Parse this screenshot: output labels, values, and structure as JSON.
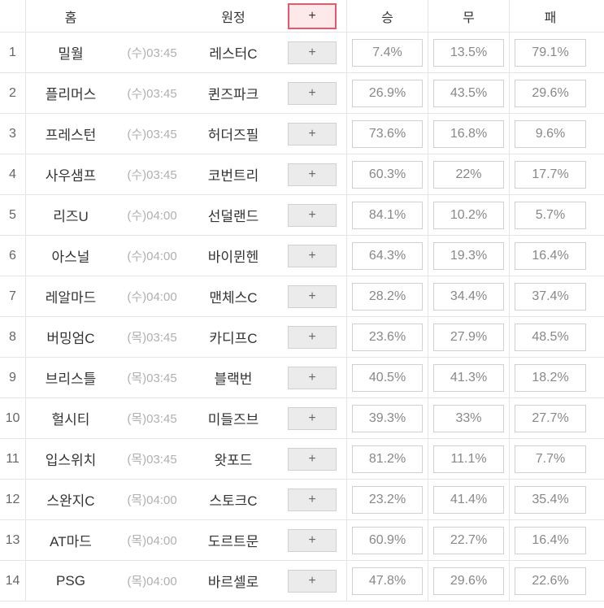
{
  "header": {
    "home": "홈",
    "away": "원정",
    "plus": "+",
    "win": "승",
    "draw": "무",
    "lose": "패"
  },
  "plus_label": "+",
  "colors": {
    "border": "#e5e5e5",
    "text_primary": "#333333",
    "text_secondary": "#666666",
    "text_muted": "#b0b0b0",
    "pct_text": "#888888",
    "plus_bg": "#ebebeb",
    "plus_border": "#d0d0d0",
    "header_plus_bg": "#fde8ea",
    "header_plus_border": "#e85a6b",
    "background": "#ffffff"
  },
  "rows": [
    {
      "num": "1",
      "home": "밀월",
      "time": "(수)03:45",
      "away": "레스터C",
      "win": "7.4%",
      "draw": "13.5%",
      "lose": "79.1%"
    },
    {
      "num": "2",
      "home": "플리머스",
      "time": "(수)03:45",
      "away": "퀸즈파크",
      "win": "26.9%",
      "draw": "43.5%",
      "lose": "29.6%"
    },
    {
      "num": "3",
      "home": "프레스턴",
      "time": "(수)03:45",
      "away": "허더즈필",
      "win": "73.6%",
      "draw": "16.8%",
      "lose": "9.6%"
    },
    {
      "num": "4",
      "home": "사우샘프",
      "time": "(수)03:45",
      "away": "코번트리",
      "win": "60.3%",
      "draw": "22%",
      "lose": "17.7%"
    },
    {
      "num": "5",
      "home": "리즈U",
      "time": "(수)04:00",
      "away": "선덜랜드",
      "win": "84.1%",
      "draw": "10.2%",
      "lose": "5.7%"
    },
    {
      "num": "6",
      "home": "아스널",
      "time": "(수)04:00",
      "away": "바이뮌헨",
      "win": "64.3%",
      "draw": "19.3%",
      "lose": "16.4%"
    },
    {
      "num": "7",
      "home": "레알마드",
      "time": "(수)04:00",
      "away": "맨체스C",
      "win": "28.2%",
      "draw": "34.4%",
      "lose": "37.4%"
    },
    {
      "num": "8",
      "home": "버밍엄C",
      "time": "(목)03:45",
      "away": "카디프C",
      "win": "23.6%",
      "draw": "27.9%",
      "lose": "48.5%"
    },
    {
      "num": "9",
      "home": "브리스틀",
      "time": "(목)03:45",
      "away": "블랙번",
      "win": "40.5%",
      "draw": "41.3%",
      "lose": "18.2%"
    },
    {
      "num": "10",
      "home": "헐시티",
      "time": "(목)03:45",
      "away": "미들즈브",
      "win": "39.3%",
      "draw": "33%",
      "lose": "27.7%"
    },
    {
      "num": "11",
      "home": "입스위치",
      "time": "(목)03:45",
      "away": "왓포드",
      "win": "81.2%",
      "draw": "11.1%",
      "lose": "7.7%"
    },
    {
      "num": "12",
      "home": "스완지C",
      "time": "(목)04:00",
      "away": "스토크C",
      "win": "23.2%",
      "draw": "41.4%",
      "lose": "35.4%"
    },
    {
      "num": "13",
      "home": "AT마드",
      "time": "(목)04:00",
      "away": "도르트문",
      "win": "60.9%",
      "draw": "22.7%",
      "lose": "16.4%"
    },
    {
      "num": "14",
      "home": "PSG",
      "time": "(목)04:00",
      "away": "바르셀로",
      "win": "47.8%",
      "draw": "29.6%",
      "lose": "22.6%"
    }
  ]
}
